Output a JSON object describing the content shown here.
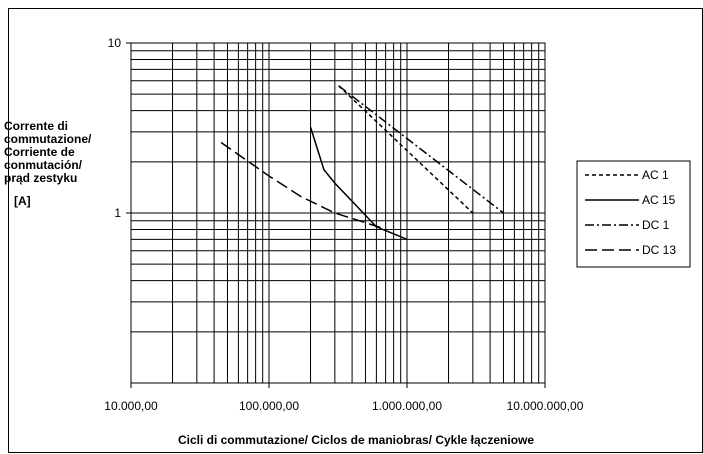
{
  "chart_data": {
    "type": "line",
    "title": "",
    "xlabel": "Cicli di commutazione/ Ciclos de maniobras/  Cykle łączeniowe",
    "ylabel_lines": [
      "Corrente di",
      "commutazione/",
      "Corriente de",
      "conmutación/",
      "prąd zestyku"
    ],
    "ylabel_unit": "[A]",
    "x_scale": "log",
    "y_scale": "log",
    "xlim": [
      10000,
      10000000
    ],
    "ylim": [
      0.1,
      10
    ],
    "x_ticks": [
      10000,
      100000,
      1000000,
      10000000
    ],
    "x_tick_labels": [
      "10.000,00",
      "100.000,00",
      "1.000.000,00",
      "10.000.000,00"
    ],
    "y_ticks": [
      1,
      10
    ],
    "y_tick_labels": [
      "1",
      "10"
    ],
    "grid": true,
    "legend_position": "right",
    "series": [
      {
        "name": "AC 1",
        "dash": "short-dash",
        "color": "#000000",
        "x": [
          320000,
          3000000
        ],
        "y": [
          5.6,
          1.0
        ]
      },
      {
        "name": "AC 15",
        "dash": "solid",
        "color": "#000000",
        "x": [
          200000,
          250000,
          300000,
          600000,
          1000000
        ],
        "y": [
          3.2,
          1.8,
          1.5,
          0.83,
          0.7
        ]
      },
      {
        "name": "DC 1",
        "dash": "dash-dot",
        "color": "#000000",
        "x": [
          320000,
          5000000
        ],
        "y": [
          5.6,
          1.0
        ]
      },
      {
        "name": "DC 13",
        "dash": "long-dash",
        "color": "#000000",
        "x": [
          45000,
          100000,
          170000,
          300000,
          650000
        ],
        "y": [
          2.6,
          1.65,
          1.25,
          1.0,
          0.82
        ]
      }
    ]
  }
}
